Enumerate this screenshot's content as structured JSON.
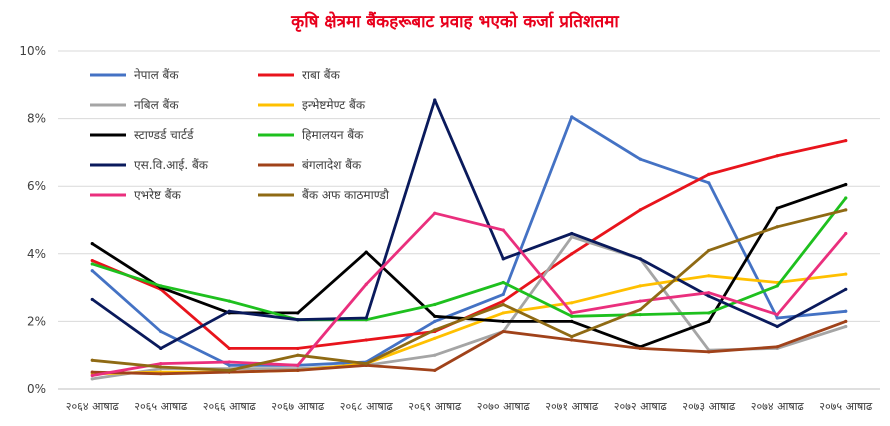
{
  "chart_data": {
    "type": "line",
    "title": "कृषि क्षेत्रमा बैंकहरूबाट प्रवाह भएको कर्जा प्रतिशतमा",
    "xlabel": "",
    "ylabel": "",
    "categories": [
      "२०६४ आषाढ",
      "२०६५ आषाढ",
      "२०६६ आषाढ",
      "२०६७ आषाढ",
      "२०६८ आषाढ",
      "२०६९ आषाढ",
      "२०७० आषाढ",
      "२०७१ आषाढ",
      "२०७२ आषाढ",
      "२०७३ आषाढ",
      "२०७४ आषाढ",
      "२०७५ आषाढ"
    ],
    "ylim": [
      0,
      10
    ],
    "yticks": [
      0,
      2,
      4,
      6,
      8,
      10
    ],
    "ytick_labels": [
      "0%",
      "2%",
      "4%",
      "6%",
      "8%",
      "10%"
    ],
    "grid": true,
    "legend_position": "top-left",
    "series": [
      {
        "name": "नेपाल बैंक",
        "color": "#4472c4",
        "values": [
          3.5,
          1.7,
          0.7,
          0.7,
          0.8,
          2.0,
          2.8,
          8.05,
          6.8,
          6.1,
          2.1,
          2.3
        ]
      },
      {
        "name": "राबा बैंक",
        "color": "#e8141c",
        "values": [
          3.8,
          2.95,
          1.2,
          1.2,
          1.45,
          1.7,
          2.6,
          4.0,
          5.3,
          6.35,
          6.9,
          7.35
        ]
      },
      {
        "name": "नबिल बैंक",
        "color": "#a5a5a5",
        "values": [
          0.3,
          0.6,
          0.6,
          0.6,
          0.7,
          1.0,
          1.7,
          4.5,
          3.85,
          1.15,
          1.2,
          1.85
        ]
      },
      {
        "name": "इन्भेष्टमेण्ट बैंक",
        "color": "#ffc000",
        "values": [
          0.45,
          0.5,
          0.5,
          0.55,
          0.75,
          1.5,
          2.25,
          2.55,
          3.05,
          3.35,
          3.15,
          3.4
        ]
      },
      {
        "name": "स्टाण्डर्ड चार्टर्ड",
        "color": "#000000",
        "values": [
          4.3,
          3.0,
          2.25,
          2.25,
          4.05,
          2.15,
          2.0,
          2.0,
          1.25,
          2.0,
          5.35,
          6.05
        ]
      },
      {
        "name": "हिमालयन बैंक",
        "color": "#1ec01e",
        "values": [
          3.7,
          3.05,
          2.6,
          2.05,
          2.05,
          2.5,
          3.15,
          2.15,
          2.2,
          2.25,
          3.05,
          5.65
        ]
      },
      {
        "name": "एस.वि.आई. बैंक",
        "color": "#0a1a5c",
        "values": [
          2.65,
          1.2,
          2.3,
          2.05,
          2.1,
          8.55,
          3.85,
          4.6,
          3.85,
          2.75,
          1.85,
          2.95
        ]
      },
      {
        "name": "बंगलादेश बैंक",
        "color": "#a0421a",
        "values": [
          0.5,
          0.45,
          0.5,
          0.55,
          0.7,
          0.55,
          1.7,
          1.45,
          1.2,
          1.1,
          1.25,
          2.0
        ]
      },
      {
        "name": "एभरेष्ट बैंक",
        "color": "#ea2f7d",
        "values": [
          0.4,
          0.75,
          0.8,
          0.7,
          3.1,
          5.2,
          4.7,
          2.25,
          2.6,
          2.85,
          2.2,
          4.6
        ]
      },
      {
        "name": "बैंक अफ काठमाण्डौ",
        "color": "#8f6a14",
        "values": [
          0.85,
          0.65,
          0.55,
          1.0,
          0.75,
          1.75,
          2.5,
          1.55,
          2.35,
          4.1,
          4.8,
          5.3
        ]
      }
    ]
  }
}
